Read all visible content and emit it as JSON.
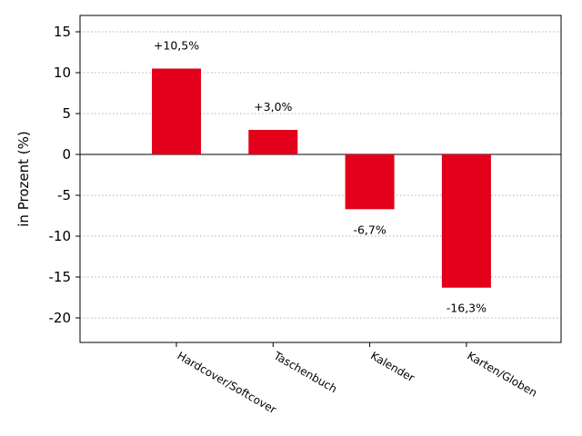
{
  "chart_data": {
    "type": "bar",
    "title": "",
    "xlabel": "",
    "ylabel": "in Prozent (%)",
    "categories": [
      "Hardcover/Softcover",
      "Taschenbuch",
      "Kalender",
      "Karten/Globen"
    ],
    "values": [
      10.5,
      3.0,
      -6.7,
      -16.3
    ],
    "data_labels": [
      "+10,5%",
      "+3,0%",
      "-6,7%",
      "-16,3%"
    ],
    "ylim": [
      -23,
      17
    ],
    "yticks": [
      15,
      10,
      5,
      0,
      -5,
      -10,
      -15,
      -20
    ],
    "ytick_labels": [
      "15",
      "10",
      "5",
      "0",
      "-5",
      "-10",
      "-15",
      "-20"
    ],
    "bar_color": "#e2001a",
    "grid": "horizontal dotted",
    "legend": "none"
  }
}
